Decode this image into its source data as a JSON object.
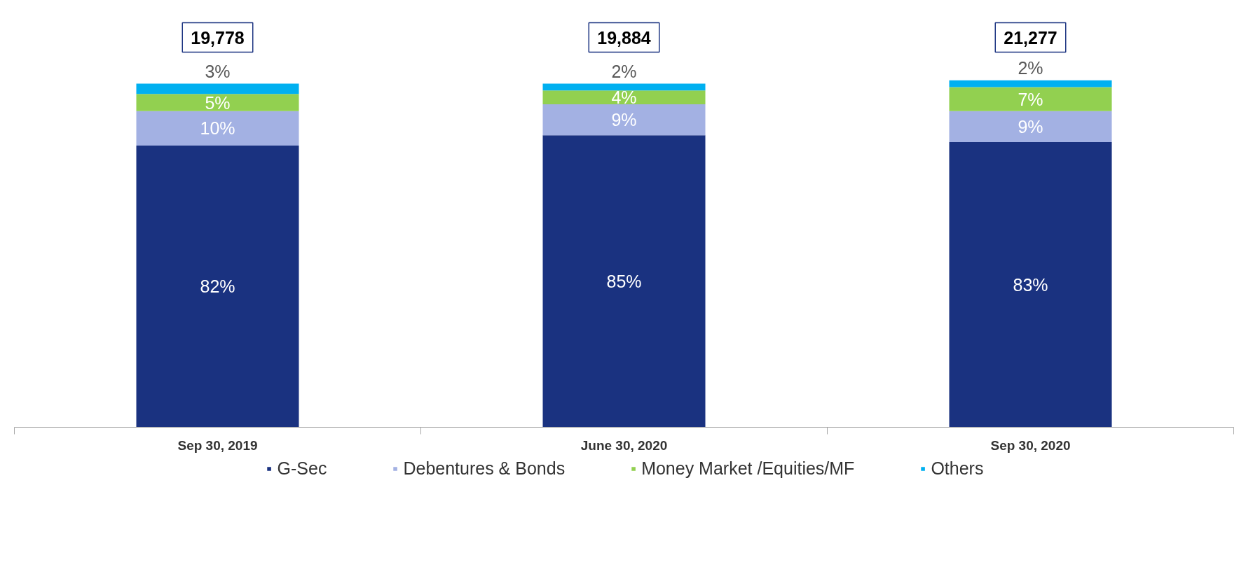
{
  "chart_data": {
    "type": "bar",
    "stacked": true,
    "categories": [
      "Sep 30, 2019",
      "June 30, 2020",
      "Sep 30, 2020"
    ],
    "series": [
      {
        "name": "G-Sec",
        "color": "#1a3280",
        "values": [
          82,
          85,
          83
        ],
        "value_labels": [
          "82%",
          "85%",
          "83%"
        ]
      },
      {
        "name": "Debentures & Bonds",
        "color": "#a3b1e3",
        "values": [
          10,
          9,
          9
        ],
        "value_labels": [
          "10%",
          "9%",
          "9%"
        ]
      },
      {
        "name": "Money Market /Equities/MF",
        "color": "#92d050",
        "values": [
          5,
          4,
          7
        ],
        "value_labels": [
          "5%",
          "4%",
          "7%"
        ]
      },
      {
        "name": "Others",
        "color": "#00b0f0",
        "values": [
          3,
          2,
          2
        ],
        "value_labels": [
          "3%",
          "2%",
          "2%"
        ]
      }
    ],
    "annotations": [
      "19,778",
      "19,884",
      "21,277"
    ],
    "legend": "bottom"
  }
}
